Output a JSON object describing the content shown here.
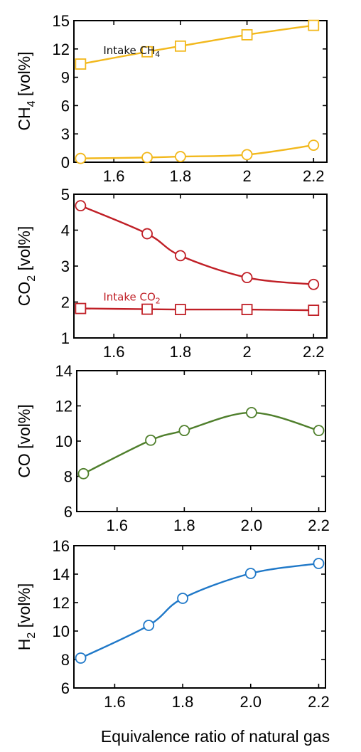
{
  "xlabel": "Equivalence ratio of natural gas",
  "chart_data": [
    {
      "type": "line",
      "panel": "ch4",
      "ylabel": "CH",
      "ylabel_sub": "4",
      "ylabel_tail": " [vol%]",
      "xlim": [
        1.48,
        2.24
      ],
      "ylim": [
        0,
        15
      ],
      "xticks": [
        1.6,
        1.8,
        2,
        2.2
      ],
      "xtick_labels": [
        "1.6",
        "1.8",
        "2",
        "2.2"
      ],
      "yticks": [
        0,
        3,
        6,
        9,
        12,
        15
      ],
      "ytick_labels": [
        "0",
        "3",
        "6",
        "9",
        "12",
        "15"
      ],
      "color": "#f2b81c",
      "series": [
        {
          "marker": "square",
          "x": [
            1.5,
            1.7,
            1.8,
            2.0,
            2.2
          ],
          "y": [
            10.4,
            11.7,
            12.3,
            13.5,
            14.5
          ],
          "annotation": "Intake CH",
          "annotation_sub": "4"
        },
        {
          "marker": "circle",
          "x": [
            1.5,
            1.7,
            1.8,
            2.0,
            2.2
          ],
          "y": [
            0.4,
            0.5,
            0.6,
            0.8,
            1.8
          ]
        }
      ]
    },
    {
      "type": "line",
      "panel": "co2",
      "ylabel": "CO",
      "ylabel_sub": "2",
      "ylabel_tail": " [vol%]",
      "xlim": [
        1.48,
        2.24
      ],
      "ylim": [
        1,
        5
      ],
      "xticks": [
        1.6,
        1.8,
        2,
        2.2
      ],
      "xtick_labels": [
        "1.6",
        "1.8",
        "2",
        "2.2"
      ],
      "yticks": [
        1,
        2,
        3,
        4,
        5
      ],
      "ytick_labels": [
        "1",
        "2",
        "3",
        "4",
        "5"
      ],
      "color": "#c01f26",
      "series": [
        {
          "marker": "circle",
          "x": [
            1.5,
            1.7,
            1.8,
            2.0,
            2.2
          ],
          "y": [
            4.68,
            3.9,
            3.29,
            2.68,
            2.49
          ]
        },
        {
          "marker": "square",
          "x": [
            1.5,
            1.7,
            1.8,
            2.0,
            2.2
          ],
          "y": [
            1.82,
            1.8,
            1.79,
            1.79,
            1.77
          ],
          "annotation": "Intake CO",
          "annotation_sub": "2"
        }
      ]
    },
    {
      "type": "line",
      "panel": "co",
      "ylabel": "CO",
      "ylabel_sub": "",
      "ylabel_tail": " [vol%]",
      "xlim": [
        1.48,
        2.22
      ],
      "ylim": [
        6,
        14
      ],
      "xticks": [
        1.6,
        1.8,
        2.0,
        2.2
      ],
      "xtick_labels": [
        "1.6",
        "1.8",
        "2.0",
        "2.2"
      ],
      "yticks": [
        6,
        8,
        10,
        12,
        14
      ],
      "ytick_labels": [
        "6",
        "8",
        "10",
        "12",
        "14"
      ],
      "color": "#4f7f2c",
      "series": [
        {
          "marker": "circle",
          "x": [
            1.5,
            1.7,
            1.8,
            2.0,
            2.2
          ],
          "y": [
            8.15,
            10.05,
            10.6,
            11.62,
            10.6
          ]
        }
      ]
    },
    {
      "type": "line",
      "panel": "h2",
      "ylabel": "H",
      "ylabel_sub": "2",
      "ylabel_tail": " [vol%]",
      "xlim": [
        1.48,
        2.22
      ],
      "ylim": [
        6,
        16
      ],
      "xticks": [
        1.6,
        1.8,
        2.0,
        2.2
      ],
      "xtick_labels": [
        "1.6",
        "1.8",
        "2.0",
        "2.2"
      ],
      "yticks": [
        6,
        8,
        10,
        12,
        14,
        16
      ],
      "ytick_labels": [
        "6",
        "8",
        "10",
        "12",
        "14",
        "16"
      ],
      "color": "#1f78c8",
      "series": [
        {
          "marker": "circle",
          "x": [
            1.5,
            1.7,
            1.8,
            2.0,
            2.2
          ],
          "y": [
            8.1,
            10.4,
            12.3,
            14.05,
            14.75
          ]
        }
      ]
    }
  ]
}
